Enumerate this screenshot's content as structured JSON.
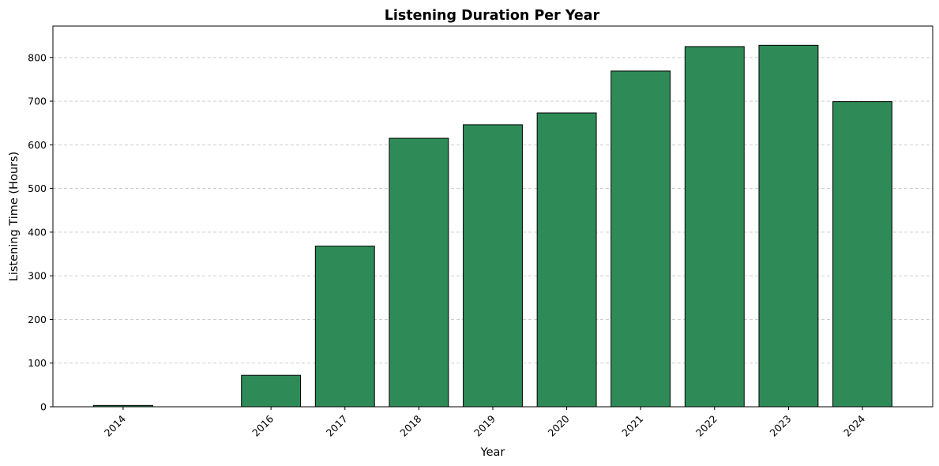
{
  "chart_data": {
    "type": "bar",
    "title": "Listening Duration Per Year",
    "xlabel": "Year",
    "ylabel": "Listening Time (Hours)",
    "x": [
      2014,
      2016,
      2017,
      2018,
      2019,
      2020,
      2021,
      2022,
      2023,
      2024
    ],
    "categories": [
      "2014",
      "2016",
      "2017",
      "2018",
      "2019",
      "2020",
      "2021",
      "2022",
      "2023",
      "2024"
    ],
    "values": [
      3,
      72,
      368,
      615,
      646,
      673,
      769,
      825,
      828,
      699
    ],
    "xlim": [
      2013.05,
      2024.95
    ],
    "ylim": [
      0,
      872
    ],
    "yticks": [
      0,
      100,
      200,
      300,
      400,
      500,
      600,
      700,
      800
    ],
    "grid": {
      "y": true,
      "x": false,
      "style": "dashed"
    },
    "legend": "none",
    "colors": {
      "bar_fill": "#2e8b57",
      "bar_edge": "#000000",
      "grid": "#c8c8c8"
    }
  }
}
